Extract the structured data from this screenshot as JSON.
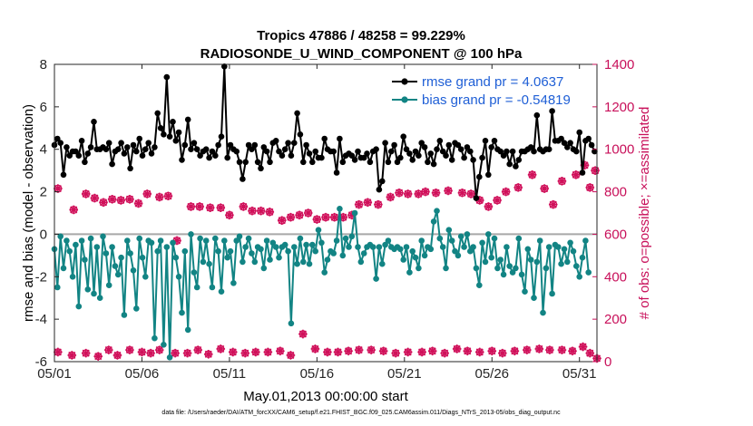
{
  "chart_data": {
    "type": "line",
    "title_line1": "Tropics 47886 / 48258 = 99.229%",
    "title_line2": "RADIOSONDE_U_WIND_COMPONENT @ 100 hPa",
    "xlabel": "May.01,2013 00:00:00 start",
    "ylabel_left": "rmse and bias (model - observation)",
    "ylabel_right": "# of obs: o=possible; ×=assimilated",
    "footnote": "data file: /Users/raeder/DAI/ATM_forcXX/CAM6_setup/f.e21.FHIST_BGC.f09_025.CAM6assim.011/Diags_NTrS_2013-05/obs_diag_output.nc",
    "x_ticks": [
      "05/01",
      "05/06",
      "05/11",
      "05/16",
      "05/21",
      "05/26",
      "05/31"
    ],
    "x_tick_days": [
      0,
      5,
      10,
      15,
      20,
      25,
      30
    ],
    "xlim_days": [
      0,
      31
    ],
    "ylim_left": [
      -6,
      8
    ],
    "yticks_left": [
      "-6",
      "-4",
      "-2",
      "0",
      "2",
      "4",
      "6",
      "8"
    ],
    "ylim_right": [
      0,
      1400
    ],
    "yticks_right": [
      "0",
      "200",
      "400",
      "600",
      "800",
      "1000",
      "1200",
      "1400"
    ],
    "zero_line": 0,
    "legend": {
      "placement": "top-right",
      "entries": [
        "rmse grand pr = 4.0637",
        "bias grand pr = -0.54819"
      ]
    },
    "series": [
      {
        "name": "rmse",
        "color": "#000000",
        "axis": "left",
        "values": [
          4.2,
          4.5,
          4.3,
          2.8,
          4.1,
          3.7,
          3.9,
          3.9,
          3.7,
          4.4,
          3.4,
          3.8,
          4.1,
          5.3,
          4.0,
          4.0,
          4.1,
          4.0,
          4.3,
          3.3,
          3.9,
          4.0,
          4.3,
          3.8,
          4.1,
          3.1,
          4.2,
          3.9,
          4.5,
          3.7,
          4.0,
          4.3,
          3.8,
          4.1,
          5.7,
          5.0,
          4.7,
          7.4,
          4.6,
          5.3,
          4.4,
          4.8,
          3.5,
          4.2,
          5.4,
          4.0,
          4.3,
          4.0,
          3.7,
          3.9,
          4.0,
          3.6,
          3.9,
          3.7,
          4.2,
          4.6,
          7.9,
          3.6,
          4.2,
          4.0,
          3.9,
          3.4,
          2.6,
          3.4,
          4.2,
          4.0,
          4.2,
          3.4,
          3.1,
          4.1,
          3.9,
          3.4,
          4.3,
          4.4,
          3.9,
          3.7,
          4.0,
          4.3,
          3.7,
          4.3,
          5.7,
          4.7,
          3.4,
          4.2,
          3.8,
          3.4,
          3.9,
          3.6,
          3.6,
          4.5,
          4.0,
          3.9,
          3.9,
          2.9,
          4.5,
          3.4,
          3.7,
          3.8,
          3.7,
          3.5,
          3.9,
          3.6,
          3.6,
          3.8,
          3.4,
          3.9,
          4.0,
          2.1,
          2.5,
          4.3,
          3.4,
          3.9,
          4.2,
          3.4,
          3.6,
          4.6,
          4.0,
          3.8,
          3.5,
          3.9,
          3.7,
          4.3,
          4.1,
          3.4,
          3.8,
          3.3,
          4.0,
          4.4,
          3.9,
          3.7,
          4.2,
          3.5,
          4.3,
          4.2,
          4.0,
          3.6,
          4.1,
          3.9,
          3.5,
          1.7,
          2.7,
          3.6,
          4.4,
          2.8,
          4.1,
          4.4,
          4.0,
          3.9,
          3.7,
          3.9,
          3.3,
          3.9,
          3.2,
          3.5,
          3.9,
          3.9,
          4.0,
          4.1,
          3.9,
          5.6,
          4.0,
          3.9,
          4.0,
          4.0,
          5.8,
          4.4,
          4.4,
          4.5,
          4.3,
          4.1,
          4.3,
          4.0,
          3.9,
          4.8,
          2.9,
          4.4,
          4.5,
          4.2,
          3.9
        ],
        "x_start_day": 0.0,
        "x_step_day": 0.1734
      },
      {
        "name": "bias",
        "color": "#128484",
        "axis": "left",
        "values": [
          -0.7,
          -2.5,
          -0.1,
          -1.6,
          -0.3,
          -0.8,
          -2.0,
          -0.5,
          -3.4,
          -0.3,
          -1.2,
          -2.6,
          -0.2,
          -2.8,
          -0.6,
          -3.0,
          -0.1,
          -0.9,
          -2.4,
          -0.6,
          -1.5,
          -1.9,
          -1.1,
          -3.8,
          -0.3,
          -0.9,
          -1.7,
          -3.5,
          -0.2,
          -1.1,
          -2.0,
          -0.3,
          -0.4,
          -4.9,
          -0.8,
          -0.3,
          -5.2,
          -0.6,
          -5.8,
          -0.4,
          -1.1,
          -2.0,
          -3.7,
          -0.8,
          -4.5,
          0.0,
          -1.8,
          -2.5,
          -0.2,
          -1.3,
          -0.3,
          -1.4,
          -2.5,
          -0.2,
          -0.8,
          -2.7,
          -0.3,
          -1.1,
          -0.8,
          -2.3,
          -0.3,
          -0.1,
          -1.3,
          -0.6,
          -0.2,
          -0.9,
          -1.3,
          -0.6,
          -0.7,
          -1.6,
          -0.3,
          -1.2,
          -0.4,
          -0.6,
          -1.1,
          -0.6,
          -0.5,
          -0.8,
          -4.2,
          -0.6,
          -1.4,
          -0.2,
          -1.3,
          -0.5,
          -1.4,
          -0.5,
          -0.8,
          0.2,
          -0.4,
          -1.8,
          -1.2,
          -0.8,
          -0.9,
          -0.3,
          1.2,
          -1.0,
          -0.2,
          -0.6,
          -0.1,
          1.0,
          -0.6,
          -1.3,
          -0.9,
          -0.6,
          -0.5,
          -0.6,
          -2.1,
          -0.6,
          -1.4,
          -0.5,
          -0.3,
          -0.6,
          -0.7,
          -0.6,
          -0.7,
          -1.2,
          -0.6,
          -1.8,
          -0.8,
          -1.1,
          -1.6,
          -0.3,
          -1.0,
          -0.6,
          -0.7,
          0.6,
          1.1,
          -0.2,
          -0.6,
          -1.6,
          0.2,
          -0.3,
          -0.8,
          -1.0,
          -0.1,
          -0.6,
          0.0,
          -0.8,
          -0.6,
          -1.6,
          -2.4,
          -0.4,
          -1.3,
          0.0,
          -1.1,
          -0.2,
          -1.6,
          -1.2,
          -1.9,
          -0.6,
          -1.5,
          -1.8,
          -1.6,
          -0.2,
          -1.9,
          -2.7,
          -0.7,
          -1.2,
          -3.0,
          -1.3,
          -0.3,
          -3.7,
          -1.6,
          -0.6,
          -2.8,
          -0.5,
          -0.6,
          -1.4,
          -0.7,
          -1.3,
          -0.4,
          -0.8,
          -1.5,
          -2.0,
          -1.1,
          -0.3,
          -1.8
        ],
        "x_start_day": 0.0,
        "x_step_day": 0.1734
      }
    ],
    "obs_counts": {
      "color": "#d0105a",
      "axis": "right",
      "possible": [
        {
          "day": 0.2,
          "value": 815
        },
        {
          "day": 1.1,
          "value": 715
        },
        {
          "day": 1.8,
          "value": 790
        },
        {
          "day": 2.3,
          "value": 770
        },
        {
          "day": 2.8,
          "value": 750
        },
        {
          "day": 3.3,
          "value": 765
        },
        {
          "day": 3.8,
          "value": 760
        },
        {
          "day": 4.3,
          "value": 765
        },
        {
          "day": 4.8,
          "value": 745
        },
        {
          "day": 5.3,
          "value": 790
        },
        {
          "day": 6.0,
          "value": 775
        },
        {
          "day": 6.5,
          "value": 780
        },
        {
          "day": 7.0,
          "value": 570
        },
        {
          "day": 7.8,
          "value": 730
        },
        {
          "day": 8.3,
          "value": 730
        },
        {
          "day": 8.9,
          "value": 725
        },
        {
          "day": 9.5,
          "value": 725
        },
        {
          "day": 10.0,
          "value": 690
        },
        {
          "day": 10.8,
          "value": 730
        },
        {
          "day": 11.3,
          "value": 710
        },
        {
          "day": 11.8,
          "value": 710
        },
        {
          "day": 12.3,
          "value": 705
        },
        {
          "day": 13.0,
          "value": 665
        },
        {
          "day": 13.5,
          "value": 680
        },
        {
          "day": 14.0,
          "value": 690
        },
        {
          "day": 14.5,
          "value": 700
        },
        {
          "day": 15.0,
          "value": 670
        },
        {
          "day": 15.5,
          "value": 680
        },
        {
          "day": 16.0,
          "value": 680
        },
        {
          "day": 16.5,
          "value": 680
        },
        {
          "day": 17.0,
          "value": 690
        },
        {
          "day": 17.4,
          "value": 740
        },
        {
          "day": 17.9,
          "value": 750
        },
        {
          "day": 18.5,
          "value": 740
        },
        {
          "day": 19.2,
          "value": 775
        },
        {
          "day": 19.7,
          "value": 795
        },
        {
          "day": 20.2,
          "value": 790
        },
        {
          "day": 20.8,
          "value": 790
        },
        {
          "day": 21.2,
          "value": 800
        },
        {
          "day": 21.8,
          "value": 795
        },
        {
          "day": 22.5,
          "value": 805
        },
        {
          "day": 23.3,
          "value": 795
        },
        {
          "day": 23.8,
          "value": 790
        },
        {
          "day": 24.3,
          "value": 760
        },
        {
          "day": 24.8,
          "value": 730
        },
        {
          "day": 25.3,
          "value": 760
        },
        {
          "day": 25.8,
          "value": 800
        },
        {
          "day": 26.5,
          "value": 820
        },
        {
          "day": 27.3,
          "value": 880
        },
        {
          "day": 28.0,
          "value": 815
        },
        {
          "day": 28.5,
          "value": 740
        },
        {
          "day": 29.0,
          "value": 850
        },
        {
          "day": 29.8,
          "value": 880
        },
        {
          "day": 30.3,
          "value": 925
        },
        {
          "day": 30.6,
          "value": 820
        },
        {
          "day": 30.9,
          "value": 900
        }
      ],
      "assimilated_low": [
        {
          "day": 0.2,
          "value": 45
        },
        {
          "day": 1.0,
          "value": 30
        },
        {
          "day": 1.8,
          "value": 40
        },
        {
          "day": 2.5,
          "value": 25
        },
        {
          "day": 3.1,
          "value": 55
        },
        {
          "day": 3.6,
          "value": 30
        },
        {
          "day": 4.3,
          "value": 55
        },
        {
          "day": 5.0,
          "value": 45
        },
        {
          "day": 5.5,
          "value": 40
        },
        {
          "day": 6.0,
          "value": 55
        },
        {
          "day": 6.9,
          "value": 40
        },
        {
          "day": 7.6,
          "value": 40
        },
        {
          "day": 8.2,
          "value": 55
        },
        {
          "day": 8.8,
          "value": 35
        },
        {
          "day": 9.5,
          "value": 60
        },
        {
          "day": 10.2,
          "value": 45
        },
        {
          "day": 10.9,
          "value": 40
        },
        {
          "day": 11.5,
          "value": 45
        },
        {
          "day": 12.2,
          "value": 45
        },
        {
          "day": 12.9,
          "value": 50
        },
        {
          "day": 13.5,
          "value": 30
        },
        {
          "day": 14.2,
          "value": 130
        },
        {
          "day": 14.9,
          "value": 60
        },
        {
          "day": 15.6,
          "value": 45
        },
        {
          "day": 16.2,
          "value": 45
        },
        {
          "day": 16.8,
          "value": 50
        },
        {
          "day": 17.4,
          "value": 55
        },
        {
          "day": 18.1,
          "value": 55
        },
        {
          "day": 18.8,
          "value": 50
        },
        {
          "day": 19.5,
          "value": 40
        },
        {
          "day": 20.2,
          "value": 45
        },
        {
          "day": 21.0,
          "value": 45
        },
        {
          "day": 21.6,
          "value": 50
        },
        {
          "day": 22.3,
          "value": 40
        },
        {
          "day": 23.0,
          "value": 60
        },
        {
          "day": 23.6,
          "value": 50
        },
        {
          "day": 24.3,
          "value": 45
        },
        {
          "day": 25.0,
          "value": 50
        },
        {
          "day": 25.6,
          "value": 40
        },
        {
          "day": 26.3,
          "value": 50
        },
        {
          "day": 27.0,
          "value": 55
        },
        {
          "day": 27.7,
          "value": 60
        },
        {
          "day": 28.3,
          "value": 55
        },
        {
          "day": 29.0,
          "value": 55
        },
        {
          "day": 29.6,
          "value": 50
        },
        {
          "day": 30.2,
          "value": 70
        },
        {
          "day": 30.6,
          "value": 40
        },
        {
          "day": 31.0,
          "value": 15
        }
      ]
    }
  }
}
